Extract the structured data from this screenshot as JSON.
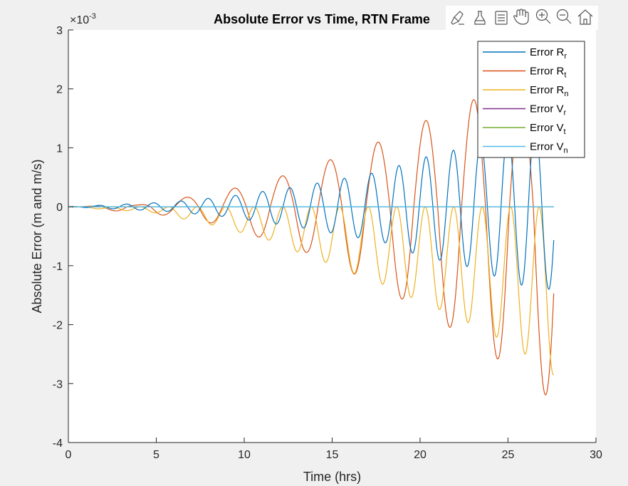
{
  "chart_data": {
    "type": "line",
    "title": "Absolute Error vs Time, RTN Frame",
    "xlabel": "Time (hrs)",
    "ylabel": "Absolute Error (m and m/s)",
    "exponent_label": "×10",
    "exponent_power": "-3",
    "xlim": [
      0,
      30
    ],
    "ylim": [
      -4,
      3
    ],
    "x_ticks": [
      "0",
      "5",
      "10",
      "15",
      "20",
      "25",
      "30"
    ],
    "y_ticks": [
      "-4",
      "-3",
      "-2",
      "-1",
      "0",
      "1",
      "2",
      "3"
    ],
    "grid": false,
    "legend_position": "top-right",
    "x_end": 27.6,
    "series": [
      {
        "name_main": "Error  R",
        "name_sub": "r",
        "color": "#0072BD",
        "description": "oscillating, period ~1.55 h, growing amplitude",
        "peaks": [
          [
            5.2,
            0.04
          ],
          [
            8.1,
            0.11
          ],
          [
            10.6,
            0.21
          ],
          [
            12.2,
            0.28
          ],
          [
            13.7,
            0.33
          ],
          [
            15.7,
            0.48
          ],
          [
            17.0,
            0.49
          ],
          [
            19.5,
            0.68
          ],
          [
            21.3,
            0.89
          ],
          [
            22.9,
            1.02
          ],
          [
            25.1,
            1.28
          ],
          [
            26.7,
            1.4
          ]
        ],
        "troughs": [
          [
            5.8,
            -0.08
          ],
          [
            7.5,
            -0.13
          ],
          [
            9.0,
            -0.17
          ],
          [
            11.5,
            -0.28
          ],
          [
            13.0,
            -0.34
          ],
          [
            14.5,
            -0.42
          ],
          [
            16.0,
            -0.5
          ],
          [
            18.0,
            -0.61
          ],
          [
            19.5,
            -0.78
          ],
          [
            21.0,
            -0.9
          ],
          [
            22.5,
            -1.0
          ],
          [
            24.0,
            -1.13
          ],
          [
            25.0,
            -1.27
          ],
          [
            26.7,
            -1.4
          ]
        ]
      },
      {
        "name_main": "Error  R",
        "name_sub": "t",
        "color": "#D95319",
        "description": "oscillating, period ~2.8 h, growing amplitude, ends near -3.3",
        "peaks": [
          [
            4.0,
            0.03
          ],
          [
            6.9,
            0.17
          ],
          [
            9.7,
            0.33
          ],
          [
            12.5,
            0.55
          ],
          [
            15.2,
            0.83
          ],
          [
            17.9,
            1.13
          ],
          [
            20.6,
            1.5
          ],
          [
            23.3,
            1.85
          ]
        ],
        "troughs": [
          [
            5.7,
            -0.15
          ],
          [
            8.6,
            -0.3
          ],
          [
            11.2,
            -0.55
          ],
          [
            14.1,
            -0.83
          ],
          [
            16.8,
            -1.22
          ],
          [
            19.5,
            -1.65
          ],
          [
            22.1,
            -2.12
          ],
          [
            24.9,
            -2.68
          ],
          [
            27.6,
            -3.3
          ]
        ]
      },
      {
        "name_main": "Error  R",
        "name_sub": "n",
        "color": "#EDB120",
        "description": "non-positive oscillation, period ~1.55 h, growing amplitude",
        "troughs": [
          [
            4.9,
            -0.1
          ],
          [
            8.5,
            -0.33
          ],
          [
            11.8,
            -0.6
          ],
          [
            13.5,
            -0.83
          ],
          [
            15.2,
            -1.0
          ],
          [
            16.8,
            -1.2
          ],
          [
            18.4,
            -1.37
          ],
          [
            20.0,
            -1.62
          ],
          [
            21.6,
            -1.8
          ],
          [
            23.3,
            -2.05
          ],
          [
            24.9,
            -2.3
          ],
          [
            26.4,
            -2.58
          ],
          [
            27.3,
            -2.85
          ]
        ]
      },
      {
        "name_main": "Error  V",
        "name_sub": "r",
        "color": "#7E2F8E",
        "description": "near zero"
      },
      {
        "name_main": "Error  V",
        "name_sub": "t",
        "color": "#77AC30",
        "description": "near zero"
      },
      {
        "name_main": "Error  V",
        "name_sub": "n",
        "color": "#4DBEEE",
        "description": "near zero"
      }
    ]
  },
  "toolbar": {
    "icons": [
      "brush-icon",
      "data-tips-icon",
      "legend-edit-icon",
      "pan-hand-icon",
      "zoom-in-icon",
      "zoom-out-icon",
      "home-icon"
    ]
  }
}
